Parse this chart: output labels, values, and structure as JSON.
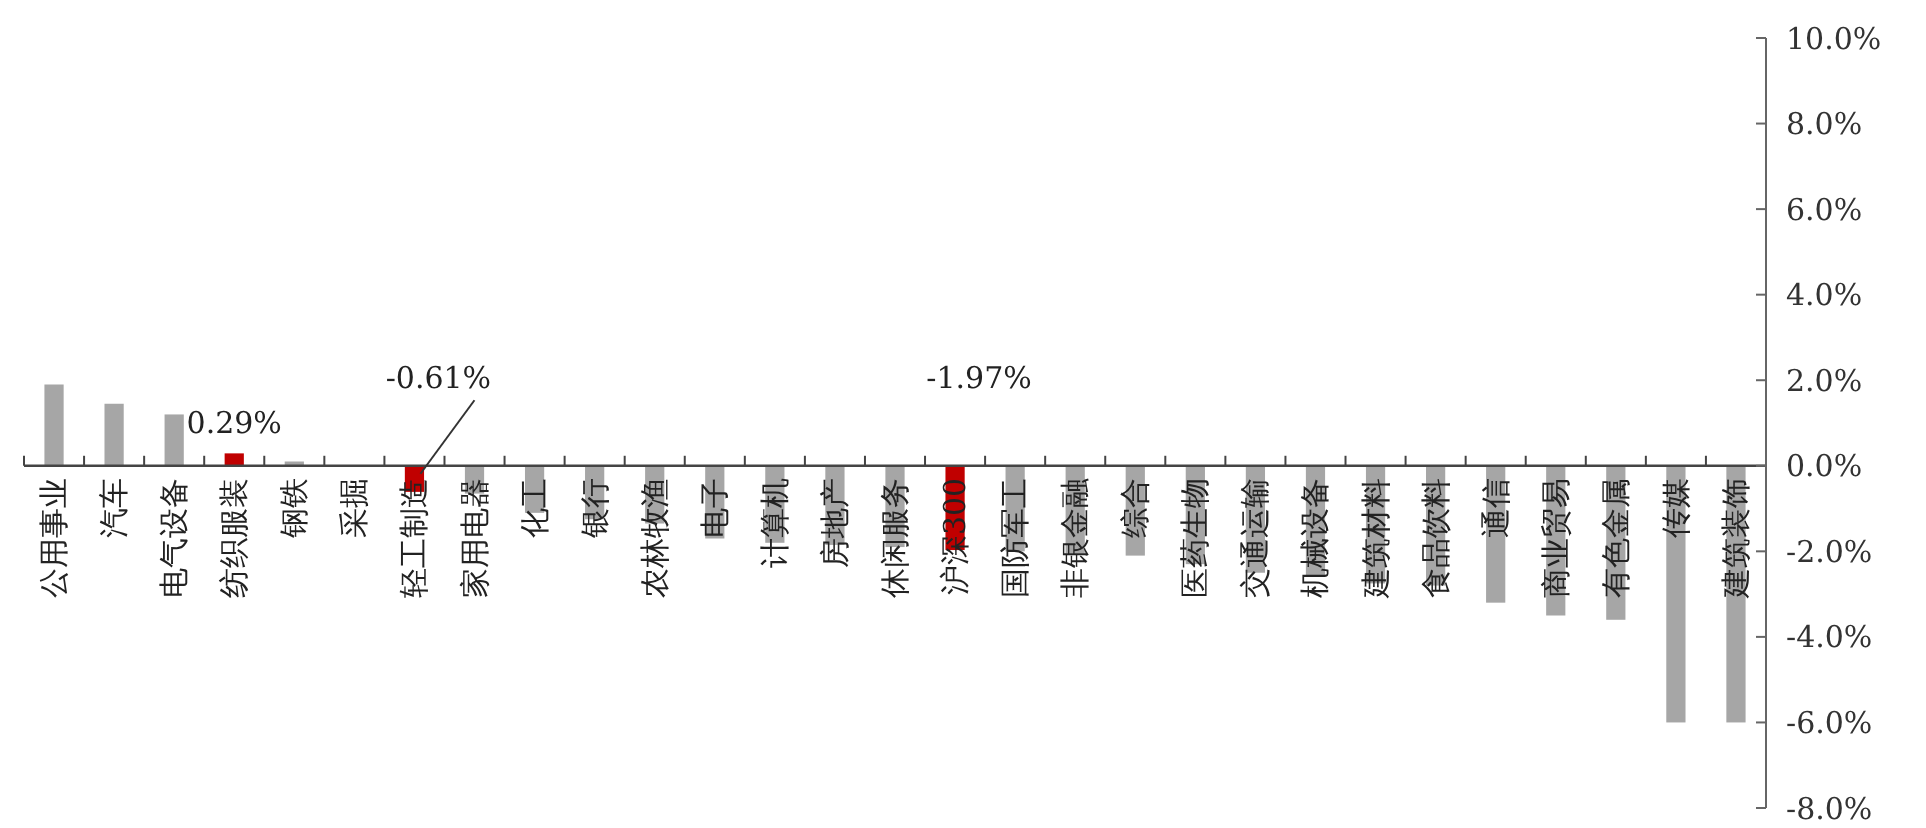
{
  "chart_data": {
    "type": "bar",
    "categories": [
      "公用事业",
      "汽车",
      "电气设备",
      "纺织服装",
      "钢铁",
      "采掘",
      "轻工制造",
      "家用电器",
      "化工",
      "银行",
      "农林牧渔",
      "电子",
      "计算机",
      "房地产",
      "休闲服务",
      "沪深300",
      "国防军工",
      "非银金融",
      "综合",
      "医药生物",
      "交通运输",
      "机械设备",
      "建筑材料",
      "食品饮料",
      "通信",
      "商业贸易",
      "有色金属",
      "传媒",
      "建筑装饰"
    ],
    "values": [
      1.9,
      1.45,
      1.2,
      0.29,
      0.1,
      null,
      -0.61,
      -0.65,
      -1.1,
      -1.25,
      -1.35,
      -1.7,
      -1.8,
      -1.85,
      -1.9,
      -1.97,
      -2.0,
      -2.05,
      -2.1,
      -2.3,
      -2.5,
      -2.6,
      -2.75,
      -2.8,
      -3.2,
      -3.5,
      -3.6,
      -6.0,
      -6.0
    ],
    "colors": [
      "#a6a6a6",
      "#a6a6a6",
      "#a6a6a6",
      "#c00000",
      "#a6a6a6",
      null,
      "#c00000",
      "#a6a6a6",
      "#a6a6a6",
      "#a6a6a6",
      "#a6a6a6",
      "#a6a6a6",
      "#a6a6a6",
      "#a6a6a6",
      "#a6a6a6",
      "#c00000",
      "#a6a6a6",
      "#a6a6a6",
      "#a6a6a6",
      "#a6a6a6",
      "#a6a6a6",
      "#a6a6a6",
      "#a6a6a6",
      "#a6a6a6",
      "#a6a6a6",
      "#a6a6a6",
      "#a6a6a6",
      "#a6a6a6",
      "#a6a6a6"
    ],
    "value_labels": [
      null,
      null,
      null,
      "0.29%",
      null,
      null,
      "-0.61%",
      null,
      null,
      null,
      null,
      null,
      null,
      null,
      null,
      "-1.97%",
      null,
      null,
      null,
      null,
      null,
      null,
      null,
      null,
      null,
      null,
      null,
      null,
      null
    ],
    "ylim": [
      -8,
      10
    ],
    "yticks": [
      {
        "value": 10,
        "label": "10.0%"
      },
      {
        "value": 8,
        "label": "8.0%"
      },
      {
        "value": 6,
        "label": "6.0%"
      },
      {
        "value": 4,
        "label": "4.0%"
      },
      {
        "value": 2,
        "label": "2.0%"
      },
      {
        "value": 0,
        "label": "0.0%"
      },
      {
        "value": -2,
        "label": "-2.0%"
      },
      {
        "value": -4,
        "label": "-4.0%"
      },
      {
        "value": -6,
        "label": "-6.0%"
      },
      {
        "value": -8,
        "label": "-8.0%"
      }
    ],
    "grid": false
  }
}
